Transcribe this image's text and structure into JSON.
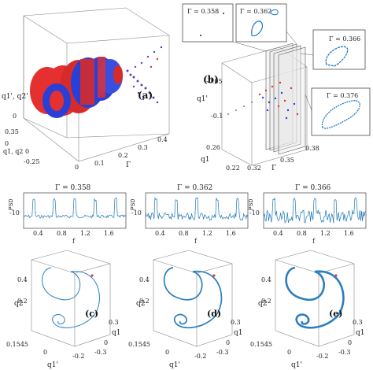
{
  "panels": {
    "a": {
      "label": "(a)",
      "ylabel": "q1', q2'",
      "xlabel": "q1, q2 0",
      "zlabel": "Γ",
      "q_ticks": [
        "0",
        "-0.25",
        "0.35"
      ],
      "gamma_ticks": [
        "0",
        "0.1",
        "0.2",
        "0.3",
        "0.4"
      ],
      "z_ticks": [
        "0",
        "-0.2"
      ]
    },
    "b": {
      "label": "(b)",
      "ylabel": "q1'",
      "xlabel": "q1",
      "zlabel": "Γ",
      "qp_ticks": [
        "-0.05",
        "-0.1"
      ],
      "q1_ticks": [
        "0.26",
        "0.22"
      ],
      "gamma_ticks": [
        "0.32",
        "0.35",
        "0.38"
      ],
      "insets": [
        "Γ = 0.358",
        "Γ = 0.362",
        "Γ = 0.366",
        "Γ = 0.376"
      ]
    },
    "psd": [
      {
        "title": "Γ = 0.358",
        "ylabel": "PSD",
        "xlabel": "f",
        "yticks": [
          "-10"
        ],
        "xticks": [
          "0.4",
          "0.8",
          "1.2",
          "1.6"
        ]
      },
      {
        "title": "Γ = 0.362",
        "ylabel": "PSD",
        "xlabel": "f",
        "yticks": [
          "-10"
        ],
        "xticks": [
          "0.4",
          "0.8",
          "1.2",
          "1.6"
        ]
      },
      {
        "title": "Γ = 0.366",
        "ylabel": "PSD",
        "xlabel": "f",
        "yticks": [
          "-10"
        ],
        "xticks": [
          "0.4",
          "0.8",
          "1.2",
          "1.6"
        ]
      }
    ],
    "traj": [
      {
        "label": "(c)",
        "ylabel": "q2",
        "xlabel": "q1'",
        "zlabel": "q1",
        "yticks": [
          "0.4",
          "0.2",
          "0.1545"
        ],
        "xticks": [
          "0",
          "-0.2"
        ],
        "zticks": [
          "0.3",
          "0",
          "-0.3"
        ]
      },
      {
        "label": "(d)",
        "ylabel": "q2",
        "xlabel": "q1'",
        "zlabel": "q1",
        "yticks": [
          "0.4",
          "0.2",
          "0.1545"
        ],
        "xticks": [
          "0",
          "-0.2"
        ],
        "zticks": [
          "0.3",
          "0",
          "-0.3"
        ]
      },
      {
        "label": "(e)",
        "ylabel": "q2",
        "xlabel": "q1'",
        "zlabel": "q1",
        "yticks": [
          "0.4",
          "0.2",
          "0.1545"
        ],
        "xticks": [
          "0",
          "-0.2"
        ],
        "zticks": [
          "0.3",
          "0",
          "-0.3"
        ]
      }
    ]
  }
}
